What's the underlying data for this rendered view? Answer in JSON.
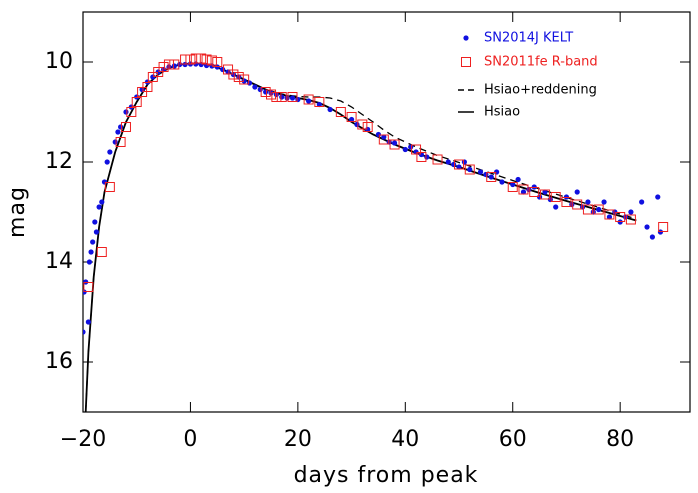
{
  "chart_data": {
    "type": "scatter",
    "xlabel": "days from peak",
    "ylabel": "mag",
    "xlim": [
      -20,
      93
    ],
    "ylim": [
      17,
      9
    ],
    "xticks": [
      {
        "value": -20,
        "label": "−20"
      },
      0,
      20,
      40,
      60,
      80
    ],
    "yticks": [
      10,
      12,
      14,
      16
    ],
    "legend": "upper right",
    "series": [
      {
        "name": "SN2014J KELT",
        "color": "#1010e0",
        "marker": "dot",
        "x": [
          -20,
          -19.8,
          -19.5,
          -19,
          -18.8,
          -18.5,
          -18.2,
          -17.8,
          -17.5,
          -17,
          -16.5,
          -16,
          -15.5,
          -15,
          -14,
          -13.5,
          -13,
          -12,
          -11,
          -10,
          -9,
          -8,
          -7,
          -6,
          -5,
          -4,
          -3,
          -2,
          -1,
          0,
          1,
          2,
          3,
          4,
          5,
          6,
          7,
          8,
          9,
          10,
          11,
          12,
          13,
          14,
          15,
          16,
          17,
          18,
          19,
          20,
          22,
          24,
          26,
          30,
          31,
          33,
          35,
          36,
          37,
          38,
          40,
          41,
          42,
          43,
          44,
          48,
          49,
          50,
          51,
          52,
          54,
          55,
          56,
          57,
          58,
          60,
          61,
          62,
          63,
          64,
          65,
          66,
          67,
          68,
          70,
          71,
          72,
          73,
          74,
          75,
          76,
          77,
          78,
          79,
          80,
          81,
          82,
          84,
          85,
          86,
          87,
          87.5
        ],
        "values": [
          15.4,
          14.6,
          14.4,
          15.2,
          14.0,
          13.8,
          13.6,
          13.2,
          13.4,
          12.9,
          12.8,
          12.4,
          12.0,
          11.8,
          11.6,
          11.4,
          11.3,
          11.0,
          10.9,
          10.7,
          10.55,
          10.4,
          10.3,
          10.2,
          10.15,
          10.1,
          10.08,
          10.05,
          10.05,
          10.04,
          10.04,
          10.05,
          10.07,
          10.08,
          10.1,
          10.15,
          10.2,
          10.25,
          10.3,
          10.38,
          10.42,
          10.5,
          10.55,
          10.6,
          10.62,
          10.65,
          10.7,
          10.72,
          10.72,
          10.75,
          10.78,
          10.85,
          10.95,
          11.15,
          11.25,
          11.35,
          11.45,
          11.5,
          11.6,
          11.62,
          11.75,
          11.7,
          11.8,
          11.85,
          11.9,
          12.0,
          12.05,
          12.1,
          12.0,
          12.15,
          12.2,
          12.25,
          12.3,
          12.2,
          12.4,
          12.45,
          12.35,
          12.6,
          12.55,
          12.5,
          12.7,
          12.6,
          12.75,
          12.9,
          12.7,
          12.85,
          12.6,
          12.9,
          12.8,
          13.0,
          12.95,
          12.8,
          13.1,
          13.0,
          13.2,
          13.1,
          13.0,
          12.8,
          13.3,
          13.5,
          12.7,
          13.4
        ]
      },
      {
        "name": "SN2011fe R-band",
        "color": "#ee2020",
        "marker": "square",
        "x": [
          -19,
          -16.5,
          -15,
          -13,
          -12,
          -11,
          -10,
          -9,
          -8,
          -7,
          -6,
          -5,
          -4,
          -3,
          -1,
          0,
          1,
          2,
          3,
          4,
          5,
          7,
          8,
          9,
          10,
          14,
          15,
          16,
          17,
          19,
          22,
          24,
          28,
          30,
          32,
          33,
          36,
          38,
          42,
          43,
          46,
          50,
          52,
          56,
          60,
          62,
          64,
          66,
          68,
          70,
          72,
          74,
          76,
          78,
          80,
          82,
          88
        ],
        "values": [
          14.5,
          13.8,
          12.5,
          11.6,
          11.3,
          11.0,
          10.8,
          10.6,
          10.5,
          10.3,
          10.2,
          10.1,
          10.05,
          10.05,
          9.95,
          9.95,
          9.93,
          9.93,
          9.95,
          9.97,
          10.0,
          10.15,
          10.25,
          10.3,
          10.35,
          10.6,
          10.65,
          10.7,
          10.7,
          10.7,
          10.75,
          10.8,
          11.0,
          11.1,
          11.25,
          11.3,
          11.55,
          11.65,
          11.75,
          11.9,
          11.95,
          12.05,
          12.15,
          12.3,
          12.5,
          12.55,
          12.6,
          12.65,
          12.7,
          12.8,
          12.85,
          12.95,
          12.95,
          13.05,
          13.1,
          13.15,
          13.3
        ]
      },
      {
        "name": "Hsiao+reddening",
        "color": "#000000",
        "marker": "dashed",
        "x": [
          -19.5,
          -19,
          -18,
          -17,
          -16,
          -14,
          -12,
          -10,
          -8,
          -6,
          -4,
          -2,
          0,
          2,
          4,
          6,
          8,
          10,
          12,
          14,
          16,
          18,
          20,
          22,
          24,
          26,
          28,
          30,
          32,
          34,
          36,
          38,
          42,
          46,
          50,
          55,
          60,
          70,
          80,
          83
        ],
        "values": [
          17,
          15.8,
          14.3,
          13.3,
          12.6,
          11.8,
          11.2,
          10.8,
          10.45,
          10.25,
          10.12,
          10.05,
          10.03,
          10.03,
          10.07,
          10.15,
          10.25,
          10.35,
          10.45,
          10.55,
          10.62,
          10.66,
          10.69,
          10.7,
          10.7,
          10.72,
          10.78,
          10.9,
          11.05,
          11.2,
          11.36,
          11.5,
          11.7,
          11.87,
          12.01,
          12.19,
          12.37,
          12.71,
          13.04,
          13.14
        ]
      },
      {
        "name": "Hsiao",
        "color": "#000000",
        "marker": "solid",
        "x": [
          -19.5,
          -19,
          -18,
          -17,
          -16,
          -14,
          -12,
          -10,
          -8,
          -6,
          -4,
          -2,
          0,
          2,
          4,
          6,
          8,
          10,
          12,
          14,
          16,
          18,
          20,
          22,
          24,
          26,
          28,
          30,
          34,
          38,
          42,
          46,
          50,
          55,
          60,
          65,
          70,
          75,
          80,
          83
        ],
        "values": [
          17,
          15.8,
          14.3,
          13.3,
          12.6,
          11.8,
          11.2,
          10.8,
          10.45,
          10.25,
          10.12,
          10.05,
          10.03,
          10.03,
          10.07,
          10.15,
          10.25,
          10.35,
          10.45,
          10.55,
          10.62,
          10.68,
          10.72,
          10.76,
          10.82,
          10.92,
          11.05,
          11.2,
          11.45,
          11.65,
          11.82,
          11.97,
          12.1,
          12.28,
          12.45,
          12.62,
          12.78,
          12.93,
          13.08,
          13.17
        ]
      }
    ]
  }
}
